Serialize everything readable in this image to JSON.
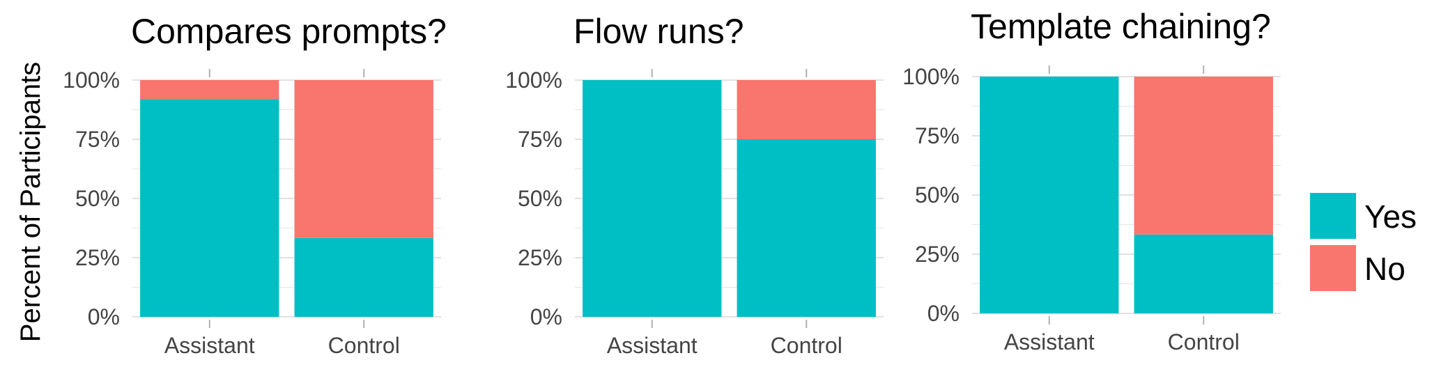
{
  "ylabel": "Percent of Participants",
  "colors": {
    "yes": "#00BFC4",
    "no": "#F8766D",
    "grid": "#cfcfcf",
    "axis": "#b0b0b0"
  },
  "legend": {
    "placement": "right",
    "items": [
      "Yes",
      "No"
    ]
  },
  "chart_data": [
    {
      "type": "bar",
      "stacked": true,
      "title": "Compares prompts?",
      "categories": [
        "Assistant",
        "Control"
      ],
      "series": [
        {
          "name": "Yes",
          "values": [
            92,
            33.3
          ]
        },
        {
          "name": "No",
          "values": [
            8,
            66.7
          ]
        }
      ],
      "ylim": [
        0,
        100
      ],
      "yticks": [
        "0%",
        "25%",
        "50%",
        "75%",
        "100%"
      ]
    },
    {
      "type": "bar",
      "stacked": true,
      "title": "Flow runs?",
      "categories": [
        "Assistant",
        "Control"
      ],
      "series": [
        {
          "name": "Yes",
          "values": [
            100,
            75
          ]
        },
        {
          "name": "No",
          "values": [
            0,
            25
          ]
        }
      ],
      "ylim": [
        0,
        100
      ],
      "yticks": [
        "0%",
        "25%",
        "50%",
        "75%",
        "100%"
      ]
    },
    {
      "type": "bar",
      "stacked": true,
      "title": "Template chaining?",
      "categories": [
        "Assistant",
        "Control"
      ],
      "series": [
        {
          "name": "Yes",
          "values": [
            100,
            33.3
          ]
        },
        {
          "name": "No",
          "values": [
            0,
            66.7
          ]
        }
      ],
      "ylim": [
        0,
        100
      ],
      "yticks": [
        "0%",
        "25%",
        "50%",
        "75%",
        "100%"
      ]
    }
  ]
}
